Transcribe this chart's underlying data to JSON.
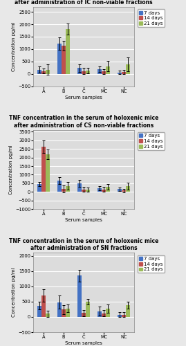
{
  "charts": [
    {
      "title": "TNF concentration in the serum of holoxenic mice\nafter administration of IC non-viable fractions",
      "categories": [
        "A",
        "B",
        "C",
        "MC",
        "NC"
      ],
      "bars": {
        "7 days": [
          170,
          1220,
          230,
          185,
          60
        ],
        "14 days": [
          110,
          1130,
          110,
          100,
          70
        ],
        "21 days": [
          170,
          1800,
          130,
          310,
          380
        ]
      },
      "errors": {
        "7 days": [
          120,
          250,
          150,
          120,
          80
        ],
        "14 days": [
          100,
          200,
          130,
          100,
          80
        ],
        "21 days": [
          200,
          230,
          120,
          200,
          280
        ]
      },
      "ylim": [
        -500,
        2700
      ],
      "yticks": [
        -500,
        0,
        500,
        1000,
        1500,
        2000,
        2500
      ]
    },
    {
      "title": "TNF concentration in the serum of holoxenic mice\nafter administration of CS non-viable fractions",
      "categories": [
        "A",
        "B",
        "C",
        "MC",
        "NC"
      ],
      "bars": {
        "7 days": [
          440,
          670,
          490,
          220,
          170
        ],
        "14 days": [
          2620,
          175,
          150,
          150,
          80
        ],
        "21 days": [
          2190,
          340,
          130,
          300,
          330
        ]
      },
      "errors": {
        "7 days": [
          120,
          200,
          200,
          130,
          100
        ],
        "14 days": [
          350,
          200,
          150,
          150,
          100
        ],
        "21 days": [
          280,
          220,
          130,
          160,
          200
        ]
      },
      "ylim": [
        -1000,
        3600
      ],
      "yticks": [
        -1000,
        -500,
        0,
        500,
        1000,
        1500,
        2000,
        2500,
        3000,
        3500
      ]
    },
    {
      "title": "TNF concentration in the serum of holoxenic mice\nafter administration of SN fractions",
      "categories": [
        "A",
        "B",
        "C",
        "MC",
        "NC"
      ],
      "bars": {
        "7 days": [
          370,
          480,
          1350,
          185,
          70
        ],
        "14 days": [
          700,
          240,
          130,
          120,
          70
        ],
        "21 days": [
          110,
          280,
          500,
          270,
          380
        ]
      },
      "errors": {
        "7 days": [
          130,
          220,
          200,
          150,
          80
        ],
        "14 days": [
          200,
          150,
          100,
          100,
          80
        ],
        "21 days": [
          100,
          120,
          100,
          130,
          120
        ]
      },
      "ylim": [
        -500,
        2100
      ],
      "yticks": [
        -500,
        0,
        500,
        1000,
        1500,
        2000
      ]
    }
  ],
  "colors": {
    "7 days": "#4472c4",
    "14 days": "#c0504d",
    "21 days": "#9bbb59"
  },
  "ylabel": "Concentration pg/ml",
  "xlabel": "Serum samples",
  "legend_labels": [
    "7 days",
    "14 days",
    "21 days"
  ],
  "bar_width": 0.2,
  "background_color": "#e8e8e8",
  "plot_bg_color": "#dcdcdc",
  "grid_color": "#ffffff",
  "title_fontsize": 5.5,
  "axis_label_fontsize": 5.0,
  "tick_fontsize": 4.8,
  "legend_fontsize": 5.0
}
